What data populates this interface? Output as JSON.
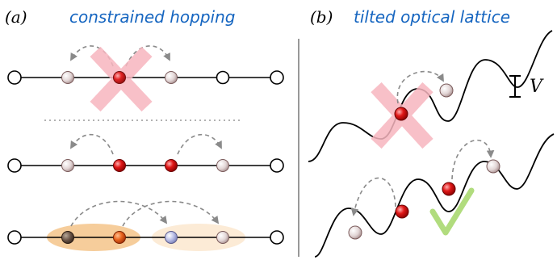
{
  "panel_a": {
    "label": "(a)",
    "title": "constrained hopping",
    "title_color": "#1565c0"
  },
  "panel_b": {
    "label": "(b)",
    "title": "tilted optical lattice",
    "title_color": "#1565c0",
    "energy_label": "V"
  },
  "colors": {
    "occupied": "#e01818",
    "empty": "#d9c8c8",
    "forbidden_cross": "#f7b6bf",
    "allowed_check": "#a8d870",
    "arrow": "#8a8a8a",
    "orange_halo": "#f2b870",
    "light_halo": "#fbe8cf",
    "dark_site": "#6b5548",
    "orange_site": "#e8641e",
    "blue_site": "#b9bde6"
  },
  "icons": [
    "forbidden-cross-icon",
    "allowed-checkmark-icon"
  ]
}
